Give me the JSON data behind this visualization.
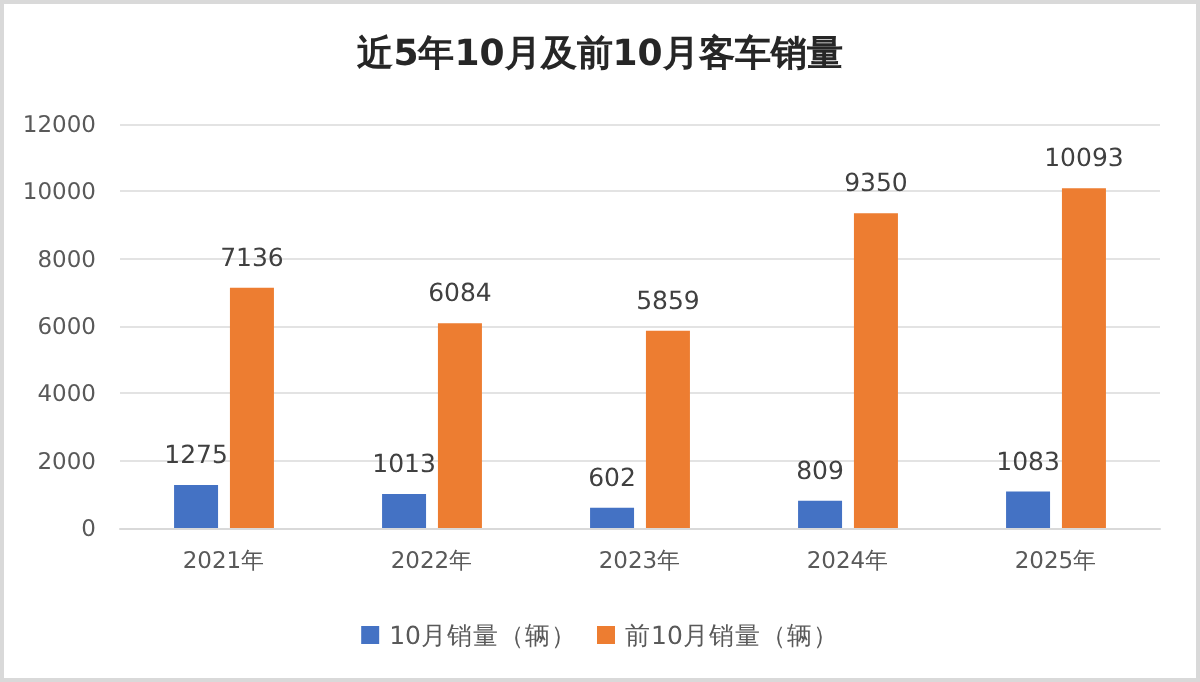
{
  "chart_data": {
    "type": "bar",
    "title": "近5年10月及前10月客车销量",
    "categories": [
      "2021年",
      "2022年",
      "2023年",
      "2024年",
      "2025年"
    ],
    "series": [
      {
        "name": "10月销量（辆）",
        "color": "#4472c4",
        "values": [
          1275,
          1013,
          602,
          809,
          1083
        ]
      },
      {
        "name": "前10月销量（辆）",
        "color": "#ed7d31",
        "values": [
          7136,
          6084,
          5859,
          9350,
          10093
        ]
      }
    ],
    "ylim": [
      0,
      12000
    ],
    "yticks": [
      0,
      2000,
      4000,
      6000,
      8000,
      10000,
      12000
    ],
    "grid": "y",
    "legend": "bottom",
    "data_labels": true
  }
}
